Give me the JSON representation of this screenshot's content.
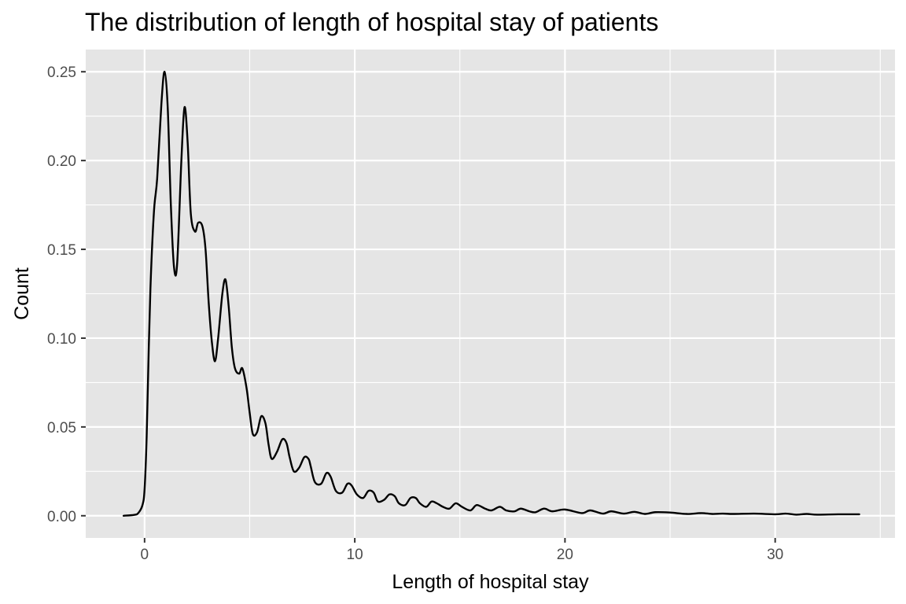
{
  "chart_data": {
    "type": "line",
    "title": "The distribution of length of hospital stay of patients",
    "xlabel": "Length of hospital stay",
    "ylabel": "Count",
    "xlim": [
      -2.8,
      35.7
    ],
    "ylim": [
      -0.0125,
      0.2625
    ],
    "x_ticks": [
      0,
      10,
      20,
      30
    ],
    "x_tick_labels": [
      "0",
      "10",
      "20",
      "30"
    ],
    "y_ticks": [
      0.0,
      0.05,
      0.1,
      0.15,
      0.2,
      0.25
    ],
    "y_tick_labels": [
      "0.00",
      "0.05",
      "0.10",
      "0.15",
      "0.20",
      "0.25"
    ],
    "grid": true,
    "panel_background": "#e5e5e5",
    "grid_color": "#ffffff",
    "line_color": "#000000",
    "series": [
      {
        "x": [
          -1.0,
          -0.5,
          -0.3,
          -0.1,
          0.0,
          0.1,
          0.2,
          0.3,
          0.45,
          0.6,
          0.8,
          0.95,
          1.1,
          1.25,
          1.4,
          1.55,
          1.75,
          1.9,
          2.05,
          2.2,
          2.4,
          2.55,
          2.75,
          2.9,
          3.05,
          3.2,
          3.35,
          3.5,
          3.7,
          3.85,
          4.0,
          4.15,
          4.3,
          4.5,
          4.65,
          4.85,
          5.0,
          5.15,
          5.35,
          5.55,
          5.75,
          5.9,
          6.05,
          6.3,
          6.55,
          6.75,
          6.9,
          7.1,
          7.35,
          7.6,
          7.8,
          7.9,
          8.1,
          8.4,
          8.65,
          8.85,
          9.1,
          9.4,
          9.65,
          9.85,
          10.1,
          10.4,
          10.65,
          10.9,
          11.1,
          11.4,
          11.65,
          11.9,
          12.1,
          12.4,
          12.65,
          12.9,
          13.1,
          13.4,
          13.65,
          13.9,
          14.2,
          14.5,
          14.8,
          15.1,
          15.5,
          15.8,
          16.2,
          16.5,
          16.9,
          17.2,
          17.6,
          17.9,
          18.3,
          18.6,
          19.0,
          19.4,
          20.0,
          20.8,
          21.2,
          21.8,
          22.2,
          22.8,
          23.3,
          23.8,
          24.3,
          25.0,
          25.8,
          26.5,
          27.0,
          27.5,
          28.0,
          29.0,
          30.0,
          30.5,
          31.0,
          31.5,
          32.0,
          33.0,
          34.0
        ],
        "y": [
          0.0,
          0.0005,
          0.0015,
          0.006,
          0.015,
          0.045,
          0.095,
          0.135,
          0.172,
          0.19,
          0.232,
          0.25,
          0.23,
          0.175,
          0.14,
          0.142,
          0.2,
          0.23,
          0.21,
          0.17,
          0.16,
          0.165,
          0.163,
          0.15,
          0.12,
          0.098,
          0.087,
          0.1,
          0.125,
          0.133,
          0.118,
          0.095,
          0.083,
          0.08,
          0.083,
          0.072,
          0.058,
          0.046,
          0.047,
          0.056,
          0.052,
          0.04,
          0.032,
          0.036,
          0.043,
          0.041,
          0.033,
          0.025,
          0.027,
          0.033,
          0.032,
          0.028,
          0.019,
          0.018,
          0.024,
          0.022,
          0.014,
          0.013,
          0.018,
          0.017,
          0.012,
          0.01,
          0.014,
          0.013,
          0.008,
          0.009,
          0.012,
          0.011,
          0.007,
          0.006,
          0.01,
          0.01,
          0.007,
          0.005,
          0.008,
          0.007,
          0.005,
          0.004,
          0.007,
          0.005,
          0.003,
          0.006,
          0.004,
          0.003,
          0.005,
          0.003,
          0.0025,
          0.004,
          0.0025,
          0.002,
          0.004,
          0.0025,
          0.0035,
          0.0015,
          0.003,
          0.0012,
          0.0025,
          0.0012,
          0.0022,
          0.001,
          0.002,
          0.0018,
          0.001,
          0.0015,
          0.001,
          0.0012,
          0.001,
          0.0012,
          0.0008,
          0.0012,
          0.0006,
          0.001,
          0.0006,
          0.0008,
          0.0008
        ]
      }
    ]
  }
}
